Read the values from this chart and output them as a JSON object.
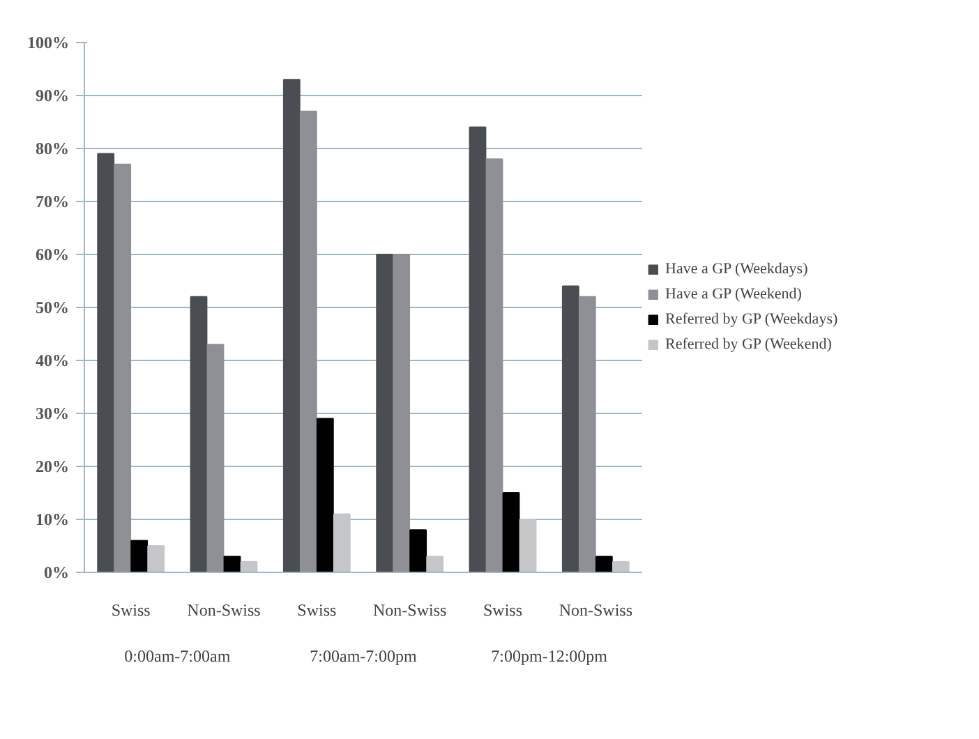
{
  "chart_data": {
    "type": "bar",
    "categories": [
      "Swiss",
      "Non-Swiss",
      "Swiss",
      "Non-Swiss",
      "Swiss",
      "Non-Swiss"
    ],
    "annotations": [
      "0:00am-7:00am",
      "7:00am-7:00pm",
      "7:00pm-12:00pm"
    ],
    "series": [
      {
        "name": "Have a GP (Weekdays)",
        "color": "#4a4d52",
        "values": [
          79,
          52,
          93,
          60,
          84,
          54
        ]
      },
      {
        "name": "Have a GP (Weekend)",
        "color": "#8e9096",
        "values": [
          77,
          43,
          87,
          60,
          78,
          52
        ]
      },
      {
        "name": "Referred by GP (Weekdays)",
        "color": "#000000",
        "values": [
          6,
          3,
          29,
          8,
          15,
          3
        ]
      },
      {
        "name": "Referred by GP (Weekend)",
        "color": "#c4c6c8",
        "values": [
          5,
          2,
          11,
          3,
          10,
          2
        ]
      }
    ],
    "ylim": [
      0,
      100
    ],
    "yticks": [
      {
        "value": 0,
        "label": "0%"
      },
      {
        "value": 10,
        "label": "10%"
      },
      {
        "value": 20,
        "label": "20%"
      },
      {
        "value": 30,
        "label": "30%"
      },
      {
        "value": 40,
        "label": "40%"
      },
      {
        "value": 50,
        "label": "50%"
      },
      {
        "value": 60,
        "label": "60%"
      },
      {
        "value": 70,
        "label": "70%"
      },
      {
        "value": 80,
        "label": "80%"
      },
      {
        "value": 90,
        "label": "90%"
      },
      {
        "value": 100,
        "label": "100%"
      }
    ],
    "grid": "y",
    "legend": "right"
  }
}
